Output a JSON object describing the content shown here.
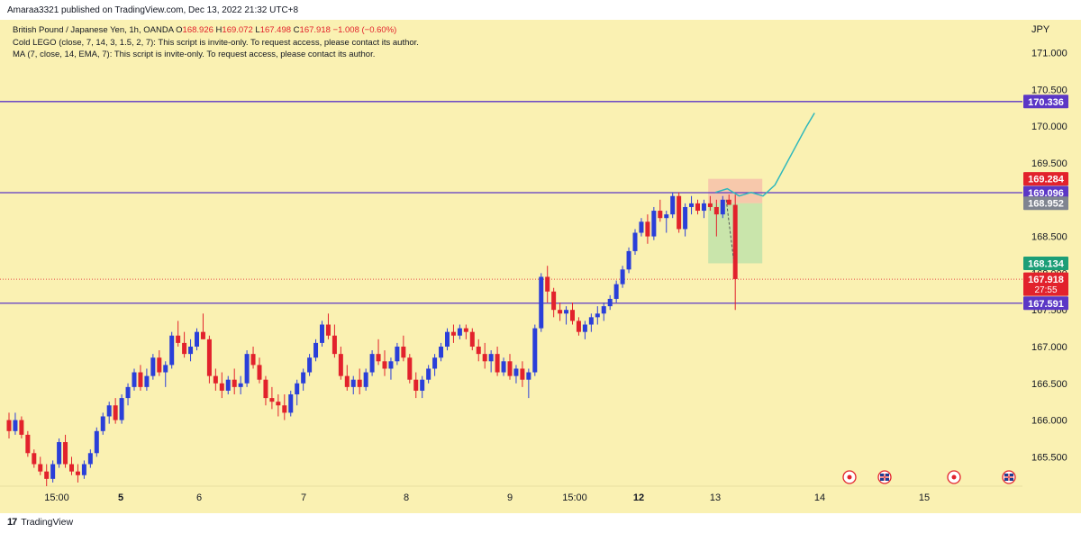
{
  "header": {
    "published": "Amaraa3321 published on TradingView.com, Dec 13, 2022 21:32 UTC+8"
  },
  "legend": {
    "symbol": "British Pound / Japanese Yen, 1h, OANDA",
    "o_label": "O",
    "o": "168.926",
    "h_label": "H",
    "h": "169.072",
    "l_label": "L",
    "l": "167.498",
    "c_label": "C",
    "c": "167.918",
    "change": "−1.008 (−0.60%)",
    "ind1": "Cold LEGO (close, 7, 14, 3, 1.5, 2, 7): This script is invite-only. To request access, please contact its author.",
    "ind2": "MA (7, close, 14, EMA, 7): This script is invite-only. To request access, please contact its author."
  },
  "footer": {
    "brand": "TradingView",
    "logo": "17"
  },
  "colors": {
    "background": "#faf1b2",
    "up": "#2a3fd9",
    "down": "#e2222c",
    "level": "#5b37c6",
    "projection": "#2fb8bc",
    "stop_zone": "#f5b9a8",
    "target_zone": "#b8e0a8"
  },
  "chart_data": {
    "type": "candlestick",
    "instrument": "GBPJPY",
    "currency": "JPY",
    "ylim": [
      165.1,
      171.4
    ],
    "y_ticks": [
      "165.500",
      "166.000",
      "166.500",
      "167.000",
      "167.500",
      "168.000",
      "168.500",
      "169.000",
      "169.500",
      "170.000",
      "170.500",
      "171.000"
    ],
    "x_ticks": [
      "15:00",
      "5",
      "6",
      "7",
      "8",
      "9",
      "15:00",
      "12",
      "13",
      "14",
      "15"
    ],
    "x_ticks_bold": [
      "5",
      "12"
    ],
    "horizontal_levels": [
      170.336,
      169.096,
      167.591
    ],
    "price_labels": [
      {
        "text": "170.336",
        "value": 170.336,
        "color": "#5b37c6"
      },
      {
        "text": "169.284",
        "value": 169.284,
        "color": "#e2222c"
      },
      {
        "text": "169.096",
        "value": 169.096,
        "color": "#5b37c6"
      },
      {
        "text": "168.952",
        "value": 168.952,
        "color": "#7f8490"
      },
      {
        "text": "168.134",
        "value": 168.134,
        "color": "#1b9e77"
      },
      {
        "text": "167.918",
        "value": 167.918,
        "color": "#e2222c",
        "sub": "27:55"
      },
      {
        "text": "167.591",
        "value": 167.591,
        "color": "#5b37c6"
      }
    ],
    "last_price": 167.918,
    "countdown": "27:55",
    "position_tool": {
      "entry": 168.952,
      "stop": 169.284,
      "target": 168.134
    },
    "projection_path": [
      [
        0,
        169.1
      ],
      [
        0.3,
        169.15
      ],
      [
        0.6,
        169.05
      ],
      [
        0.9,
        169.1
      ],
      [
        1.2,
        169.05
      ],
      [
        1.5,
        169.2
      ],
      [
        2.0,
        169.7
      ],
      [
        2.3,
        170.0
      ],
      [
        2.5,
        170.18
      ]
    ],
    "event_markers": [
      "target",
      "uk-flag",
      "target",
      "uk-flag"
    ],
    "candles": [
      [
        166.0,
        166.1,
        165.75,
        165.85
      ],
      [
        165.85,
        166.1,
        165.8,
        166.0
      ],
      [
        166.0,
        166.05,
        165.75,
        165.8
      ],
      [
        165.8,
        165.85,
        165.5,
        165.55
      ],
      [
        165.55,
        165.6,
        165.35,
        165.4
      ],
      [
        165.4,
        165.5,
        165.25,
        165.3
      ],
      [
        165.3,
        165.4,
        165.1,
        165.2
      ],
      [
        165.2,
        165.45,
        165.15,
        165.4
      ],
      [
        165.4,
        165.75,
        165.35,
        165.7
      ],
      [
        165.7,
        165.8,
        165.35,
        165.4
      ],
      [
        165.4,
        165.5,
        165.25,
        165.3
      ],
      [
        165.3,
        165.4,
        165.15,
        165.25
      ],
      [
        165.25,
        165.45,
        165.2,
        165.4
      ],
      [
        165.4,
        165.6,
        165.35,
        165.55
      ],
      [
        165.55,
        165.9,
        165.5,
        165.85
      ],
      [
        165.85,
        166.1,
        165.8,
        166.05
      ],
      [
        166.05,
        166.25,
        165.95,
        166.2
      ],
      [
        166.2,
        166.3,
        165.95,
        166.0
      ],
      [
        166.0,
        166.35,
        165.95,
        166.3
      ],
      [
        166.3,
        166.5,
        166.2,
        166.45
      ],
      [
        166.45,
        166.7,
        166.4,
        166.65
      ],
      [
        166.65,
        166.75,
        166.4,
        166.45
      ],
      [
        166.45,
        166.7,
        166.4,
        166.6
      ],
      [
        166.6,
        166.9,
        166.55,
        166.85
      ],
      [
        166.85,
        166.95,
        166.6,
        166.65
      ],
      [
        166.65,
        166.8,
        166.45,
        166.75
      ],
      [
        166.75,
        167.2,
        166.7,
        167.15
      ],
      [
        167.15,
        167.35,
        167.0,
        167.05
      ],
      [
        167.05,
        167.2,
        166.85,
        166.9
      ],
      [
        166.9,
        167.1,
        166.8,
        167.0
      ],
      [
        167.0,
        167.25,
        166.95,
        167.2
      ],
      [
        167.2,
        167.45,
        167.1,
        167.1
      ],
      [
        167.1,
        167.15,
        166.5,
        166.6
      ],
      [
        166.6,
        166.7,
        166.4,
        166.5
      ],
      [
        166.5,
        166.65,
        166.3,
        166.4
      ],
      [
        166.4,
        166.6,
        166.35,
        166.55
      ],
      [
        166.55,
        166.7,
        166.35,
        166.45
      ],
      [
        166.45,
        166.6,
        166.35,
        166.5
      ],
      [
        166.5,
        166.95,
        166.45,
        166.9
      ],
      [
        166.9,
        167.0,
        166.7,
        166.75
      ],
      [
        166.75,
        166.85,
        166.5,
        166.55
      ],
      [
        166.55,
        166.6,
        166.2,
        166.3
      ],
      [
        166.3,
        166.45,
        166.15,
        166.25
      ],
      [
        166.25,
        166.35,
        166.05,
        166.2
      ],
      [
        166.2,
        166.35,
        166.0,
        166.1
      ],
      [
        166.1,
        166.4,
        166.05,
        166.35
      ],
      [
        166.35,
        166.55,
        166.2,
        166.5
      ],
      [
        166.5,
        166.7,
        166.4,
        166.65
      ],
      [
        166.65,
        166.9,
        166.6,
        166.85
      ],
      [
        166.85,
        167.1,
        166.8,
        167.05
      ],
      [
        167.05,
        167.35,
        167.0,
        167.3
      ],
      [
        167.3,
        167.45,
        167.1,
        167.15
      ],
      [
        167.15,
        167.3,
        166.85,
        166.9
      ],
      [
        166.9,
        167.0,
        166.55,
        166.6
      ],
      [
        166.6,
        166.75,
        166.4,
        166.45
      ],
      [
        166.45,
        166.6,
        166.35,
        166.55
      ],
      [
        166.55,
        166.7,
        166.35,
        166.45
      ],
      [
        166.45,
        166.7,
        166.4,
        166.65
      ],
      [
        166.65,
        166.95,
        166.6,
        166.9
      ],
      [
        166.9,
        167.1,
        166.75,
        166.8
      ],
      [
        166.8,
        166.95,
        166.6,
        166.7
      ],
      [
        166.7,
        166.85,
        166.55,
        166.8
      ],
      [
        166.8,
        167.05,
        166.75,
        167.0
      ],
      [
        167.0,
        167.15,
        166.8,
        166.85
      ],
      [
        166.85,
        166.9,
        166.5,
        166.55
      ],
      [
        166.55,
        166.65,
        166.3,
        166.4
      ],
      [
        166.4,
        166.6,
        166.3,
        166.55
      ],
      [
        166.55,
        166.75,
        166.5,
        166.7
      ],
      [
        166.7,
        166.9,
        166.6,
        166.85
      ],
      [
        166.85,
        167.05,
        166.8,
        167.0
      ],
      [
        167.0,
        167.25,
        166.95,
        167.2
      ],
      [
        167.2,
        167.3,
        167.05,
        167.15
      ],
      [
        167.15,
        167.3,
        167.1,
        167.25
      ],
      [
        167.25,
        167.3,
        167.1,
        167.2
      ],
      [
        167.2,
        167.25,
        166.95,
        167.0
      ],
      [
        167.0,
        167.1,
        166.8,
        166.9
      ],
      [
        166.9,
        167.05,
        166.7,
        166.8
      ],
      [
        166.8,
        166.95,
        166.65,
        166.9
      ],
      [
        166.9,
        167.0,
        166.6,
        166.65
      ],
      [
        166.65,
        166.85,
        166.6,
        166.8
      ],
      [
        166.8,
        166.9,
        166.55,
        166.6
      ],
      [
        166.6,
        166.75,
        166.5,
        166.7
      ],
      [
        166.7,
        166.8,
        166.45,
        166.55
      ],
      [
        166.55,
        166.7,
        166.3,
        166.65
      ],
      [
        166.65,
        167.3,
        166.6,
        167.25
      ],
      [
        167.25,
        168.0,
        167.2,
        167.95
      ],
      [
        167.95,
        168.1,
        167.6,
        167.75
      ],
      [
        167.75,
        167.8,
        167.4,
        167.5
      ],
      [
        167.5,
        167.6,
        167.35,
        167.45
      ],
      [
        167.45,
        167.55,
        167.3,
        167.5
      ],
      [
        167.5,
        167.6,
        167.3,
        167.35
      ],
      [
        167.35,
        167.4,
        167.15,
        167.2
      ],
      [
        167.2,
        167.35,
        167.1,
        167.3
      ],
      [
        167.3,
        167.45,
        167.2,
        167.4
      ],
      [
        167.4,
        167.55,
        167.3,
        167.45
      ],
      [
        167.45,
        167.6,
        167.35,
        167.55
      ],
      [
        167.55,
        167.7,
        167.5,
        167.65
      ],
      [
        167.65,
        167.9,
        167.6,
        167.85
      ],
      [
        167.85,
        168.1,
        167.8,
        168.05
      ],
      [
        168.05,
        168.35,
        168.0,
        168.3
      ],
      [
        168.3,
        168.6,
        168.25,
        168.55
      ],
      [
        168.55,
        168.75,
        168.5,
        168.7
      ],
      [
        168.7,
        168.8,
        168.4,
        168.5
      ],
      [
        168.5,
        168.9,
        168.45,
        168.85
      ],
      [
        168.85,
        169.0,
        168.7,
        168.75
      ],
      [
        168.75,
        168.85,
        168.55,
        168.8
      ],
      [
        168.8,
        169.1,
        168.75,
        169.05
      ],
      [
        169.05,
        169.1,
        168.55,
        168.6
      ],
      [
        168.6,
        168.95,
        168.5,
        168.9
      ],
      [
        168.9,
        169.05,
        168.8,
        168.95
      ],
      [
        168.95,
        169.0,
        168.8,
        168.85
      ],
      [
        168.85,
        169.0,
        168.75,
        168.95
      ],
      [
        168.95,
        169.05,
        168.85,
        168.9
      ],
      [
        168.9,
        169.0,
        168.5,
        168.8
      ],
      [
        168.8,
        169.05,
        168.75,
        169.0
      ],
      [
        169.0,
        169.07,
        168.95,
        168.93
      ],
      [
        168.93,
        169.07,
        167.5,
        167.92
      ]
    ]
  }
}
